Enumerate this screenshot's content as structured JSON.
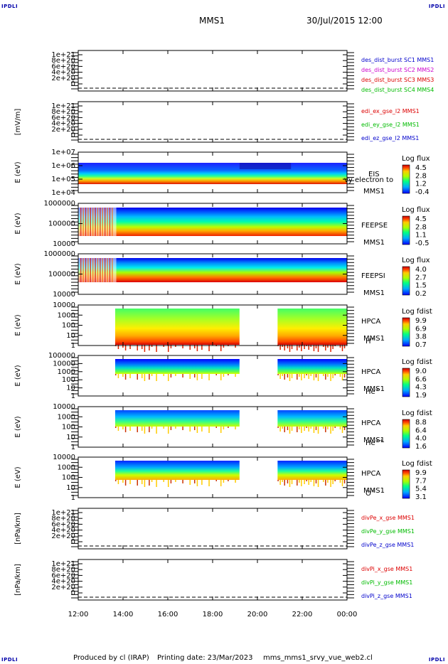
{
  "header": {
    "corner_tl": "IPDLI",
    "corner_tr": "IPDLI",
    "corner_bl": "IPDLI",
    "corner_br": "IPDLI",
    "title": "MMS1",
    "date": "30/Jul/2015 12:00"
  },
  "footer": {
    "produced": "Produced by cl (IRAP)",
    "printing": "Printing date: 23/Mar/2023",
    "file": "mms_mms1_srvy_vue_web2.cl"
  },
  "colors": {
    "black": "#000000",
    "blue": "#0000cc",
    "magenta": "#cc00cc",
    "red": "#dd0000",
    "green": "#00bb00"
  },
  "chart_data": {
    "type": "heatmap",
    "x_ticks": [
      "12:00",
      "14:00",
      "16:00",
      "18:00",
      "20:00",
      "22:00",
      "00:00"
    ],
    "xlim_hours": [
      12,
      24
    ],
    "panels": [
      {
        "id": "p1",
        "kind": "line",
        "yticks": [
          "1e+21",
          "8e+20",
          "6e+20",
          "4e+20",
          "2e+20",
          "0"
        ],
        "ylim": [
          0,
          1e+21
        ],
        "legend": [
          {
            "text": "des_dist_burst SC1 MMS1",
            "color": "#0000cc"
          },
          {
            "text": "des_dist_burst SC2 MMS2",
            "color": "#cc00cc"
          },
          {
            "text": "des_dist_burst SC3 MMS3",
            "color": "#dd0000"
          },
          {
            "text": "des_dist_burst SC4 MMS4",
            "color": "#00bb00"
          }
        ]
      },
      {
        "id": "p2",
        "kind": "line",
        "ylabel": "[mV/m]",
        "yticks": [
          "1e+21",
          "8e+20",
          "6e+20",
          "4e+20",
          "2e+20",
          "0"
        ],
        "ylim": [
          0,
          1e+21
        ],
        "legend": [
          {
            "text": "edi_ex_gse_l2 MMS1",
            "color": "#dd0000"
          },
          {
            "text": "edi_ey_gse_l2 MMS1",
            "color": "#00bb00"
          },
          {
            "text": "edi_ez_gse_l2 MMS1",
            "color": "#0000cc"
          }
        ]
      },
      {
        "id": "p3",
        "kind": "spec",
        "ylabel": "E (eV)",
        "yticks": [
          "1e+07",
          "1e+06",
          "1e+05",
          "1e+04"
        ],
        "instrument": [
          "EIS",
          "MMS1"
        ],
        "overlay_text": "vy electron to",
        "cbar_title": "Log flux",
        "cbar_ticks": [
          "4.5",
          "2.8",
          "1.2",
          "-0.4"
        ]
      },
      {
        "id": "p4",
        "kind": "spec",
        "ylabel": "E (eV)",
        "yticks": [
          "1000000",
          "100000",
          "10000"
        ],
        "instrument": [
          "FEEPSE",
          "MMS1"
        ],
        "cbar_title": "Log flux",
        "cbar_ticks": [
          "4.5",
          "2.8",
          "1.1",
          "-0.5"
        ]
      },
      {
        "id": "p5",
        "kind": "spec",
        "ylabel": "E (eV)",
        "yticks": [
          "1000000",
          "100000",
          "10000"
        ],
        "instrument": [
          "FEEPSI",
          "MMS1"
        ],
        "cbar_title": "Log flux",
        "cbar_ticks": [
          "4.0",
          "2.7",
          "1.5",
          "0.2"
        ]
      },
      {
        "id": "p6",
        "kind": "spec",
        "ylabel": "E (eV)",
        "yticks": [
          "10000",
          "1000",
          "100",
          "10",
          "1"
        ],
        "instrument": [
          "HPCA",
          "MMS1"
        ],
        "species": "H",
        "species_sup": "+",
        "cbar_title": "Log fdist",
        "cbar_ticks": [
          "9.9",
          "6.9",
          "3.8",
          "0.7"
        ]
      },
      {
        "id": "p7",
        "kind": "spec",
        "ylabel": "E (eV)",
        "yticks": [
          "100000",
          "10000",
          "1000",
          "100",
          "10",
          "1"
        ],
        "instrument": [
          "HPCA",
          "MMS1"
        ],
        "species": "He",
        "species_sup": "+",
        "cbar_title": "Log fdist",
        "cbar_ticks": [
          "9.0",
          "6.6",
          "4.3",
          "1.9"
        ]
      },
      {
        "id": "p8",
        "kind": "spec",
        "ylabel": "E (eV)",
        "yticks": [
          "10000",
          "1000",
          "100",
          "10",
          "1"
        ],
        "instrument": [
          "HPCA",
          "MMS1"
        ],
        "species": "He",
        "species_sup": "++",
        "cbar_title": "Log fdist",
        "cbar_ticks": [
          "8.8",
          "6.4",
          "4.0",
          "1.6"
        ]
      },
      {
        "id": "p9",
        "kind": "spec",
        "ylabel": "E (eV)",
        "yticks": [
          "10000",
          "1000",
          "100",
          "10",
          "1"
        ],
        "instrument": [
          "HPCA",
          "MMS1"
        ],
        "species": "O",
        "species_sup": "+",
        "cbar_title": "Log fdist",
        "cbar_ticks": [
          "9.9",
          "7.7",
          "5.4",
          "3.1"
        ]
      },
      {
        "id": "p10",
        "kind": "line",
        "ylabel": "[nPa/km]",
        "yticks": [
          "1e+21",
          "8e+20",
          "6e+20",
          "4e+20",
          "2e+20",
          "0"
        ],
        "ylim": [
          0,
          1e+21
        ],
        "legend": [
          {
            "text": "divPe_x_gse MMS1",
            "color": "#dd0000"
          },
          {
            "text": "divPe_y_gse MMS1",
            "color": "#00bb00"
          },
          {
            "text": "divPe_z_gse MMS1",
            "color": "#0000cc"
          }
        ]
      },
      {
        "id": "p11",
        "kind": "line",
        "ylabel": "[nPa/km]",
        "yticks": [
          "1e+21",
          "8e+20",
          "6e+20",
          "4e+20",
          "2e+20",
          "0"
        ],
        "ylim": [
          0,
          1e+21
        ],
        "legend": [
          {
            "text": "divPi_x_gse MMS1",
            "color": "#dd0000"
          },
          {
            "text": "divPi_y_gse MMS1",
            "color": "#00bb00"
          },
          {
            "text": "divPi_z_gse MMS1",
            "color": "#0000cc"
          }
        ]
      }
    ],
    "hpca_data_gap_hours": [
      19.2,
      20.9
    ],
    "hpca_start_hour": 13.65,
    "feeps_sparse_until_hour": 13.7
  }
}
